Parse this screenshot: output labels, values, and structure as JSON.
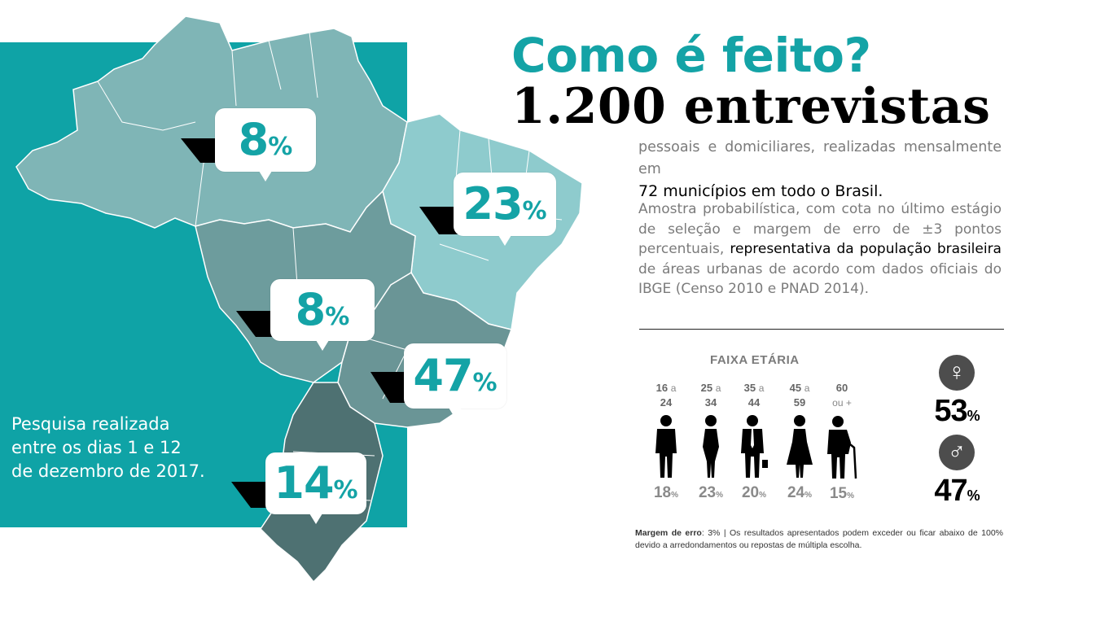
{
  "title": "Como é feito?",
  "headline": "1.200 entrevistas",
  "description": {
    "line1": "pessoais e domiciliares, realizadas mensalmente em",
    "line2": "72 municípios em todo o Brasil.",
    "p2_before": "Amostra probabilística, com cota no último estágio de seleção e margem de erro de ±3 pontos percentuais, ",
    "p2_highlight": "representativa da população brasileira",
    "p2_after": " de áreas urbanas de acordo com dados oficiais do IBGE (Censo 2010 e PNAD 2014)."
  },
  "survey_note": {
    "line1": "Pesquisa realizada",
    "line2": "entre os dias  1 e 12",
    "line3": "de dezembro de 2017."
  },
  "regions": [
    {
      "value": "8",
      "unit": "%"
    },
    {
      "value": "23",
      "unit": "%"
    },
    {
      "value": "8",
      "unit": "%"
    },
    {
      "value": "47",
      "unit": "%"
    },
    {
      "value": "14",
      "unit": "%"
    }
  ],
  "age": {
    "title": "FAIXA ETÁRIA",
    "groups": [
      {
        "from": "16",
        "joiner": "a",
        "to": "24",
        "pct": "18",
        "unit": "%"
      },
      {
        "from": "25",
        "joiner": "a",
        "to": "34",
        "pct": "23",
        "unit": "%"
      },
      {
        "from": "35",
        "joiner": "a",
        "to": "44",
        "pct": "20",
        "unit": "%"
      },
      {
        "from": "45",
        "joiner": "a",
        "to": "59",
        "pct": "24",
        "unit": "%"
      },
      {
        "from": "60",
        "joiner": "",
        "to": "ou +",
        "pct": "15",
        "unit": "%"
      }
    ]
  },
  "gender": {
    "female": {
      "icon": "female-symbol-icon",
      "glyph": "♀",
      "value": "53",
      "unit": "%"
    },
    "male": {
      "icon": "male-symbol-icon",
      "glyph": "♂",
      "value": "47",
      "unit": "%"
    }
  },
  "footnote": {
    "label": "Margem de erro",
    "text": ": 3% | Os resultados apresentados podem exceder ou ficar abaixo de 100% devido a arredondamentos ou repostas de múltipla escolha."
  },
  "colors": {
    "teal": "#0fa3a6",
    "region_north": "#7fb5b6",
    "region_northeast": "#8ecbcd",
    "region_midwest": "#6d9c9d",
    "region_southeast": "#6a9596",
    "region_south": "#4e7172"
  }
}
